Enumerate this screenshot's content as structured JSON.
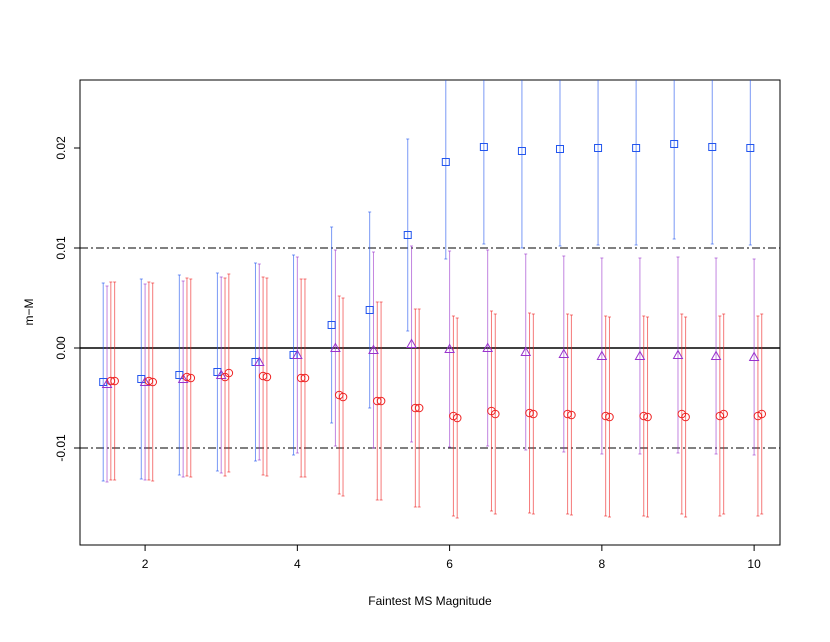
{
  "chart_data": {
    "type": "scatter",
    "xlabel": "Faintest MS Magnitude",
    "ylabel": "m−M",
    "xlim": [
      1.145,
      10.34
    ],
    "ylim": [
      -0.0197,
      0.0268
    ],
    "xticks": [
      2,
      4,
      6,
      8,
      10
    ],
    "yticks": [
      -0.01,
      {
        "value": 0,
        "label": "0.00"
      },
      0.01,
      0.02
    ],
    "hlines": [
      {
        "value": -0.01,
        "style": "dashdot"
      },
      {
        "value": 0,
        "style": "solid"
      },
      {
        "value": 0.01,
        "style": "dashdot"
      }
    ],
    "series": [
      {
        "marker": "square",
        "color": "#2255ee",
        "x": [
          1.45,
          1.95,
          2.45,
          2.95,
          3.45,
          3.95,
          4.45,
          4.95,
          5.45,
          5.95,
          6.45,
          6.95,
          7.45,
          7.95,
          8.45,
          8.95,
          9.45,
          9.95
        ],
        "values": [
          -0.0034,
          -0.0031,
          -0.0027,
          -0.0024,
          -0.0014,
          -0.0007,
          0.0023,
          0.0038,
          0.0113,
          0.0186,
          0.0201,
          0.0197,
          0.0199,
          0.02,
          0.02,
          0.0204,
          0.0201,
          0.02
        ],
        "errors": [
          0.0099,
          0.01,
          0.01,
          0.0099,
          0.0099,
          0.01,
          0.0098,
          0.0098,
          0.0096,
          0.0097,
          0.0097,
          0.0097,
          0.0097,
          0.0097,
          0.0097,
          0.0095,
          0.0097,
          0.0097
        ]
      },
      {
        "marker": "triangle",
        "color": "#9933cc",
        "x": [
          1.5,
          2,
          2.5,
          3,
          3.5,
          4,
          4.5,
          5,
          5.5,
          6,
          6.5,
          7,
          7.5,
          8,
          8.5,
          9,
          9.5,
          10
        ],
        "values": [
          -0.0036,
          -0.0034,
          -0.0031,
          -0.0027,
          -0.0014,
          -0.0007,
          0,
          -0.0002,
          0.0004,
          -0.0001,
          0,
          -0.0004,
          -0.0006,
          -0.0008,
          -0.0008,
          -0.0007,
          -0.0008,
          -0.0009
        ],
        "errors": [
          0.0098,
          0.0098,
          0.0098,
          0.0098,
          0.0098,
          0.0098,
          0.0098,
          0.0098,
          0.0098,
          0.0098,
          0.0098,
          0.0098,
          0.0098,
          0.0098,
          0.0098,
          0.0098,
          0.0098,
          0.0098
        ]
      },
      {
        "marker": "circle",
        "color": "#ee2222",
        "x": [
          1.55,
          2.05,
          2.55,
          3.05,
          3.55,
          4.05,
          4.55,
          5.05,
          5.55,
          6.05,
          6.55,
          7.05,
          7.55,
          8.05,
          8.55,
          9.05,
          9.55,
          10.05
        ],
        "values": [
          -0.0033,
          -0.0033,
          -0.0029,
          -0.0029,
          -0.0028,
          -0.003,
          -0.0047,
          -0.0053,
          -0.006,
          -0.0068,
          -0.0063,
          -0.0065,
          -0.0066,
          -0.0068,
          -0.0068,
          -0.0066,
          -0.0068,
          -0.0068
        ],
        "errors": [
          0.0099,
          0.0099,
          0.0099,
          0.0099,
          0.0099,
          0.0099,
          0.0099,
          0.0099,
          0.0099,
          0.01,
          0.01,
          0.01,
          0.01,
          0.01,
          0.01,
          0.01,
          0.01,
          0.01
        ]
      },
      {
        "marker": "circle",
        "color": "#ee2222",
        "x": [
          1.6,
          2.1,
          2.6,
          3.1,
          3.6,
          4.1,
          4.6,
          5.1,
          5.6,
          6.1,
          6.6,
          7.1,
          7.6,
          8.1,
          8.6,
          9.1,
          9.6,
          10.1
        ],
        "values": [
          -0.0033,
          -0.0034,
          -0.003,
          -0.0025,
          -0.0029,
          -0.003,
          -0.0049,
          -0.0053,
          -0.006,
          -0.007,
          -0.0066,
          -0.0066,
          -0.0067,
          -0.0069,
          -0.0069,
          -0.0069,
          -0.0066,
          -0.0066
        ],
        "errors": [
          0.0099,
          0.0099,
          0.0099,
          0.0099,
          0.0099,
          0.0099,
          0.0099,
          0.0099,
          0.0099,
          0.01,
          0.01,
          0.01,
          0.01,
          0.01,
          0.01,
          0.01,
          0.01,
          0.01
        ]
      }
    ]
  }
}
